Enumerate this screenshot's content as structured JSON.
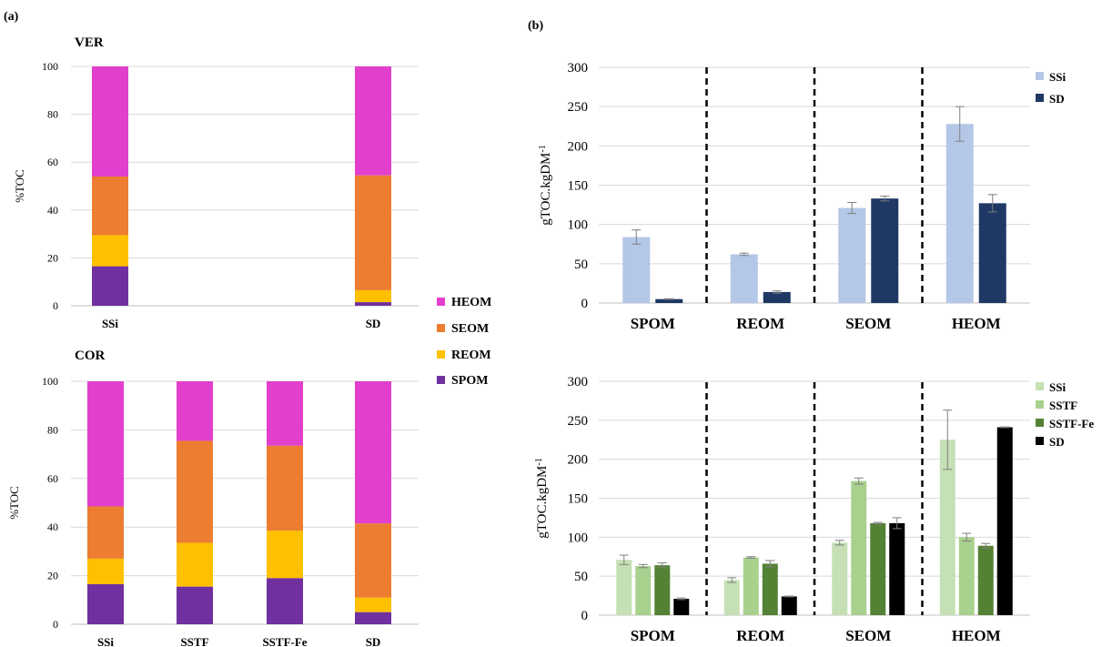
{
  "panels": {
    "a_label": "(a)",
    "b_label": "(b)"
  },
  "colors": {
    "HEOM": "#e23fcc",
    "SEOM": "#ed7d31",
    "REOM": "#ffc000",
    "SPOM": "#7030a0",
    "SSi_b": "#b4c7e7",
    "SD_b": "#1f3864",
    "SSi_g": "#c5e0b4",
    "SSTF_g": "#a9d18e",
    "SSTFFe_g": "#548235",
    "SD_g": "#000000",
    "grid": "#d9d9d9",
    "axis": "#bfbfbf",
    "error": "#7f7f7f"
  },
  "legend_a": {
    "items": [
      "HEOM",
      "SEOM",
      "REOM",
      "SPOM"
    ]
  },
  "chart_data": [
    {
      "id": "a_ver",
      "type": "bar",
      "stacked": true,
      "title": "VER",
      "ylabel": "%TOC",
      "ylim": [
        0,
        100
      ],
      "yticks": [
        "0",
        "20",
        "40",
        "60",
        "80",
        "100"
      ],
      "categories": [
        "SSi",
        "SD"
      ],
      "series": [
        {
          "name": "SPOM",
          "values": [
            16.5,
            1.5
          ]
        },
        {
          "name": "REOM",
          "values": [
            13,
            5
          ]
        },
        {
          "name": "SEOM",
          "values": [
            24.5,
            48
          ]
        },
        {
          "name": "HEOM",
          "values": [
            46,
            45.5
          ]
        }
      ],
      "grid": true
    },
    {
      "id": "a_cor",
      "type": "bar",
      "stacked": true,
      "title": "COR",
      "ylabel": "%TOC",
      "ylim": [
        0,
        100
      ],
      "yticks": [
        "0",
        "20",
        "40",
        "60",
        "80",
        "100"
      ],
      "categories": [
        "SSi",
        "SSTF",
        "SSTF-Fe",
        "SD"
      ],
      "series": [
        {
          "name": "SPOM",
          "values": [
            16.5,
            15.5,
            19,
            5
          ]
        },
        {
          "name": "REOM",
          "values": [
            10.5,
            18,
            19.5,
            6
          ]
        },
        {
          "name": "SEOM",
          "values": [
            21.5,
            42,
            35,
            30.5
          ]
        },
        {
          "name": "HEOM",
          "values": [
            51.5,
            24.5,
            26.5,
            58.5
          ]
        }
      ],
      "grid": true
    },
    {
      "id": "b_top",
      "type": "bar",
      "ylabel": "gTOC.kgDM",
      "ylabel_sup": "-1",
      "ylim": [
        0,
        300
      ],
      "yticks": [
        "0",
        "50",
        "100",
        "150",
        "200",
        "250",
        "300"
      ],
      "categories": [
        "SPOM",
        "REOM",
        "SEOM",
        "HEOM"
      ],
      "series": [
        {
          "name": "SSi",
          "values": [
            84,
            62,
            121,
            228
          ],
          "errors": [
            9,
            1.5,
            7,
            22
          ]
        },
        {
          "name": "SD",
          "values": [
            5,
            14,
            133,
            127
          ],
          "errors": [
            0.5,
            1.5,
            3,
            11
          ]
        }
      ],
      "grid": true,
      "separators": "dashed"
    },
    {
      "id": "b_bottom",
      "type": "bar",
      "ylabel": "gTOC.kgDM",
      "ylabel_sup": "-1",
      "ylim": [
        0,
        300
      ],
      "yticks": [
        "0",
        "50",
        "100",
        "150",
        "200",
        "250",
        "300"
      ],
      "categories": [
        "SPOM",
        "REOM",
        "SEOM",
        "HEOM"
      ],
      "series": [
        {
          "name": "SSi",
          "values": [
            71,
            45,
            93,
            225
          ],
          "errors": [
            6,
            3,
            3,
            38
          ]
        },
        {
          "name": "SSTF",
          "values": [
            63,
            74,
            172,
            100
          ],
          "errors": [
            2,
            1,
            4,
            5
          ]
        },
        {
          "name": "SSTF-Fe",
          "values": [
            64,
            66,
            118,
            89
          ],
          "errors": [
            3,
            4,
            1,
            3
          ]
        },
        {
          "name": "SD",
          "values": [
            21,
            24,
            118,
            241
          ],
          "errors": [
            1,
            0.5,
            7,
            0.5
          ]
        }
      ],
      "grid": true,
      "separators": "dashed"
    }
  ]
}
